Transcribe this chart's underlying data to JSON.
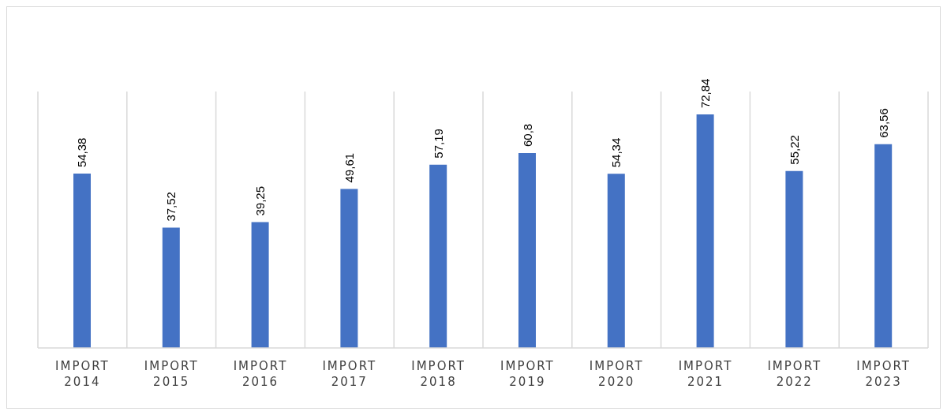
{
  "chart_data": {
    "type": "bar",
    "categories": [
      "IMPORT 2014",
      "IMPORT 2015",
      "IMPORT 2016",
      "IMPORT 2017",
      "IMPORT 2018",
      "IMPORT 2019",
      "IMPORT 2020",
      "IMPORT 2021",
      "IMPORT 2022",
      "IMPORT 2023"
    ],
    "values": [
      54.38,
      37.52,
      39.25,
      49.61,
      57.19,
      60.8,
      54.34,
      72.84,
      55.22,
      63.56
    ],
    "value_labels": [
      "54,38",
      "37,52",
      "39,25",
      "49,61",
      "57,19",
      "60,8",
      "54,34",
      "72,84",
      "55,22",
      "63,56"
    ],
    "color": "#4472c4",
    "ylim": [
      0,
      80
    ],
    "grid": "x"
  }
}
